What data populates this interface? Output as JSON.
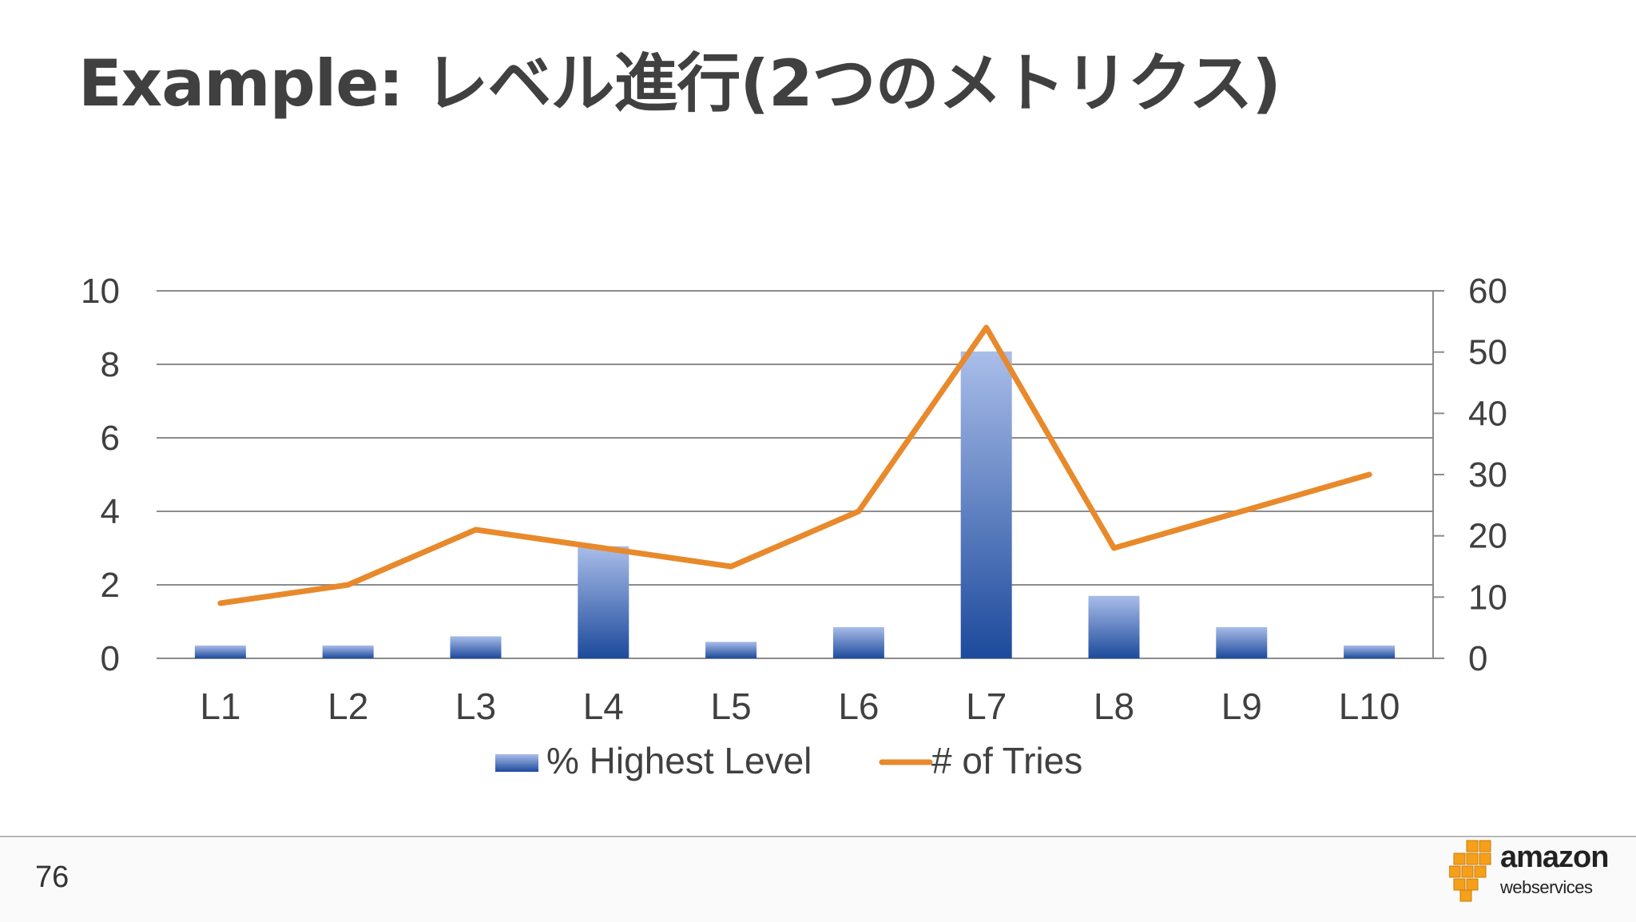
{
  "slide": {
    "title": "Example: レベル進行(2つのメトリクス)",
    "page_number": "76"
  },
  "logo": {
    "icon": "aws-cubes-icon",
    "word": "amazon",
    "sub": "webservices"
  },
  "colors": {
    "bar_light": "#a9bde9",
    "bar_dark": "#1d4a9c",
    "line": "#e8892b",
    "grid": "#8c8c8c",
    "text": "#404040"
  },
  "chart_data": {
    "type": "bar",
    "categories": [
      "L1",
      "L2",
      "L3",
      "L4",
      "L5",
      "L6",
      "L7",
      "L8",
      "L9",
      "L10"
    ],
    "y_left": {
      "min": 0,
      "max": 10,
      "ticks": [
        "0",
        "2",
        "4",
        "6",
        "8",
        "10"
      ]
    },
    "y_right": {
      "min": 0,
      "max": 60,
      "ticks": [
        "0",
        "10",
        "20",
        "30",
        "40",
        "50",
        "60"
      ]
    },
    "grid": true,
    "legend_position": "bottom",
    "series": [
      {
        "name": "% Highest Level",
        "type": "bar",
        "axis": "left",
        "values": [
          0.35,
          0.35,
          0.6,
          3.05,
          0.45,
          0.85,
          8.35,
          1.7,
          0.85,
          0.35
        ]
      },
      {
        "name": "# of Tries",
        "type": "line",
        "axis": "right",
        "values": [
          9,
          12,
          21,
          18,
          15,
          24,
          54,
          18,
          24,
          30
        ]
      }
    ]
  }
}
